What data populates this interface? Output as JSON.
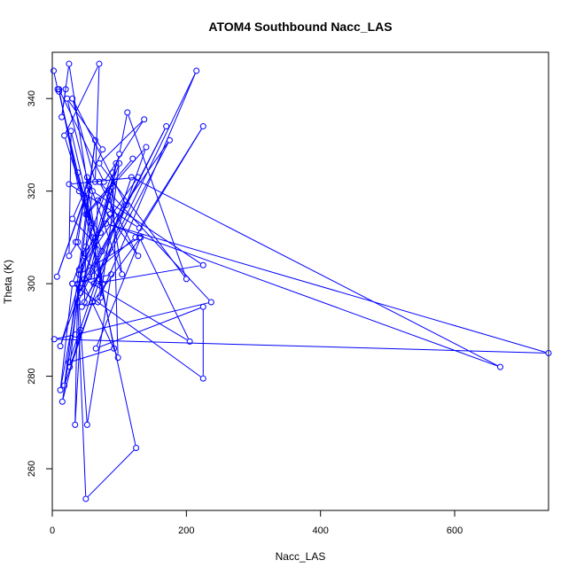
{
  "chart_data": {
    "type": "line",
    "title": "ATOM4 Southbound Nacc_LAS",
    "xlabel": "Nacc_LAS",
    "ylabel": "Theta (K)",
    "xlim": [
      0,
      740
    ],
    "ylim": [
      251,
      350
    ],
    "xticks": [
      0,
      200,
      400,
      600
    ],
    "yticks": [
      260,
      280,
      300,
      320,
      340
    ],
    "line_color": "#0000ff",
    "marker": "open-circle",
    "grid": false,
    "legend": "none",
    "series": [
      {
        "values": [
          [
            2,
            346
          ],
          [
            8,
            342
          ],
          [
            20,
            342
          ],
          [
            14,
            336
          ],
          [
            25,
            347.5
          ],
          [
            75,
            300
          ],
          [
            38,
            324
          ],
          [
            65,
            310
          ],
          [
            18,
            332
          ],
          [
            70,
            347.5
          ],
          [
            64,
            322
          ],
          [
            30,
            340
          ],
          [
            110,
            317
          ],
          [
            45,
            300
          ],
          [
            100,
            328
          ],
          [
            112,
            337
          ],
          [
            200,
            301
          ],
          [
            70,
            326
          ],
          [
            137,
            335.5
          ],
          [
            77,
            322
          ],
          [
            10,
            342
          ],
          [
            40,
            320
          ],
          [
            74,
            307
          ],
          [
            30,
            314
          ],
          [
            75,
            329
          ],
          [
            22,
            340
          ],
          [
            55,
            321
          ],
          [
            7,
            301.5
          ],
          [
            48,
            318.5
          ],
          [
            35,
            309
          ],
          [
            70,
            301
          ],
          [
            72,
            297
          ],
          [
            100,
            326
          ],
          [
            85,
            320
          ],
          [
            104,
            302
          ],
          [
            52,
            323
          ],
          [
            38,
            309
          ],
          [
            25,
            306
          ],
          [
            28,
            333
          ],
          [
            60,
            313
          ],
          [
            48,
            306.5
          ],
          [
            128,
            323
          ],
          [
            25,
            321.5
          ],
          [
            130,
            312
          ],
          [
            225,
            334
          ],
          [
            124,
            310
          ],
          [
            55,
            301.5
          ],
          [
            95,
            326
          ],
          [
            86,
            315
          ],
          [
            40,
            303
          ],
          [
            175,
            331
          ],
          [
            44,
            295
          ],
          [
            68,
            296
          ],
          [
            215,
            346
          ],
          [
            48,
            296
          ],
          [
            50,
            308
          ],
          [
            60,
            320
          ],
          [
            225,
            304
          ],
          [
            62,
            300
          ],
          [
            68,
            318
          ],
          [
            128,
            306
          ],
          [
            70,
            322
          ],
          [
            237,
            296
          ],
          [
            35,
            289
          ],
          [
            3,
            288
          ],
          [
            740,
            285
          ],
          [
            80,
            313
          ],
          [
            668,
            282
          ],
          [
            118,
            323
          ],
          [
            25,
            283
          ],
          [
            92,
            286
          ],
          [
            60,
            310
          ],
          [
            12,
            286.5
          ],
          [
            48,
            301
          ],
          [
            205,
            287.5
          ],
          [
            130,
            310
          ],
          [
            40,
            302
          ],
          [
            98,
            284
          ],
          [
            90,
            324
          ],
          [
            30,
            300
          ],
          [
            12,
            277
          ],
          [
            48,
            306
          ],
          [
            15,
            274.5
          ],
          [
            42,
            290
          ],
          [
            34,
            269.5
          ],
          [
            38,
            300
          ],
          [
            52,
            269.5
          ],
          [
            88,
            302
          ],
          [
            30,
            300
          ],
          [
            225,
            279.5
          ],
          [
            225,
            295
          ],
          [
            65,
            286
          ],
          [
            132,
            310
          ],
          [
            60,
            296
          ],
          [
            18,
            278
          ],
          [
            64,
            331
          ],
          [
            26,
            282
          ],
          [
            140,
            329.5
          ],
          [
            52,
            315
          ],
          [
            10,
            341.5
          ],
          [
            125,
            264.5
          ],
          [
            50,
            253.5
          ],
          [
            38,
            296
          ],
          [
            170,
            334
          ],
          [
            42,
            298
          ],
          [
            90,
            321
          ],
          [
            72,
            311
          ],
          [
            50,
            315
          ],
          [
            120,
            327
          ]
        ]
      }
    ]
  }
}
